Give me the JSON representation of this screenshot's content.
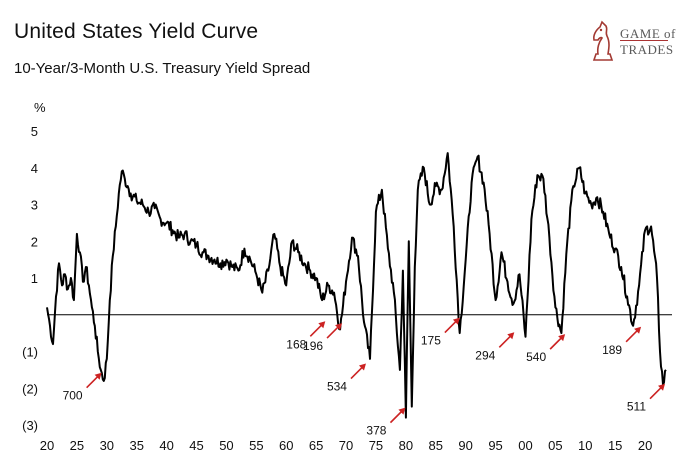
{
  "header": {
    "title": "United States Yield Curve",
    "subtitle": "10-Year/3-Month U.S. Treasury Yield Spread"
  },
  "logo": {
    "line1": "GAME of",
    "line2": "TRADES",
    "icon": "chess-knight-icon",
    "color": "#a33a33"
  },
  "chart_data": {
    "type": "line",
    "title": "United States Yield Curve",
    "subtitle": "10-Year/3-Month U.S. Treasury Yield Spread",
    "ylabel": "%",
    "xlabel": "",
    "ylim": [
      -3,
      5
    ],
    "xlim": [
      1920,
      2024.5
    ],
    "y_ticks": [
      5,
      4,
      3,
      2,
      1,
      -1,
      -2,
      -3
    ],
    "y_tick_labels": [
      "5",
      "4",
      "3",
      "2",
      "1",
      "(1)",
      "(2)",
      "(3)"
    ],
    "x_ticks": [
      1920,
      1925,
      1930,
      1935,
      1940,
      1945,
      1950,
      1955,
      1960,
      1965,
      1970,
      1975,
      1980,
      1985,
      1990,
      1995,
      2000,
      2005,
      2010,
      2015,
      2020
    ],
    "x_tick_labels": [
      "20",
      "25",
      "30",
      "35",
      "40",
      "45",
      "50",
      "55",
      "60",
      "65",
      "70",
      "75",
      "80",
      "85",
      "90",
      "95",
      "00",
      "05",
      "10",
      "15",
      "20"
    ],
    "zero_line": 0,
    "line_color": "#000000",
    "arrow_color": "#cc2222",
    "series": [
      {
        "name": "10Y-3M Spread",
        "x": [
          1920,
          1920.5,
          1921,
          1921.5,
          1922,
          1922.5,
          1923,
          1923.5,
          1924,
          1924.5,
          1925,
          1925.5,
          1926,
          1926.5,
          1927,
          1927.5,
          1928,
          1928.5,
          1929,
          1929.5,
          1930,
          1930.5,
          1931,
          1931.5,
          1932,
          1932.5,
          1933,
          1933.5,
          1934,
          1935,
          1936,
          1937,
          1938,
          1939,
          1940,
          1941,
          1942,
          1943,
          1944,
          1945,
          1946,
          1947,
          1948,
          1949,
          1950,
          1951,
          1952,
          1953,
          1954,
          1955,
          1956,
          1957,
          1958,
          1959,
          1960,
          1961,
          1962,
          1963,
          1964,
          1965,
          1966,
          1967,
          1968,
          1969,
          1970,
          1971,
          1972,
          1973,
          1974,
          1975,
          1976,
          1977,
          1978,
          1979,
          1979.5,
          1980,
          1980.5,
          1981,
          1981.5,
          1982,
          1983,
          1984,
          1985,
          1986,
          1987,
          1988,
          1989,
          1990,
          1991,
          1992,
          1993,
          1994,
          1995,
          1996,
          1997,
          1998,
          1999,
          2000,
          2001,
          2002,
          2003,
          2004,
          2005,
          2006,
          2007,
          2008,
          2009,
          2010,
          2011,
          2012,
          2013,
          2014,
          2015,
          2016,
          2017,
          2018,
          2019,
          2020,
          2021,
          2022,
          2022.5,
          2023,
          2023.5
        ],
        "y": [
          0.2,
          -0.3,
          -0.8,
          0.5,
          1.4,
          0.8,
          1.1,
          0.7,
          1.0,
          0.4,
          2.2,
          1.7,
          0.9,
          1.3,
          0.8,
          0.2,
          -0.3,
          -1.0,
          -1.5,
          -1.8,
          -1.2,
          0.4,
          1.6,
          2.4,
          3.3,
          3.9,
          3.7,
          3.5,
          3.3,
          3.1,
          3.0,
          2.8,
          2.9,
          2.6,
          2.5,
          2.3,
          2.1,
          2.2,
          2.0,
          1.9,
          1.7,
          1.6,
          1.5,
          1.4,
          1.5,
          1.3,
          1.2,
          1.8,
          1.5,
          1.1,
          0.6,
          1.2,
          2.2,
          1.3,
          0.8,
          2.0,
          1.7,
          1.4,
          1.2,
          1.0,
          0.4,
          0.8,
          0.6,
          -0.4,
          0.9,
          2.1,
          1.6,
          -0.2,
          -1.2,
          2.8,
          3.4,
          1.8,
          0.6,
          -1.5,
          1.2,
          -2.8,
          2.0,
          -2.5,
          1.3,
          3.4,
          4.0,
          3.0,
          3.5,
          3.4,
          4.4,
          2.4,
          -0.5,
          1.5,
          3.6,
          4.3,
          3.6,
          2.2,
          0.4,
          1.7,
          0.9,
          0.3,
          1.1,
          -0.6,
          2.6,
          3.8,
          3.7,
          2.1,
          0.2,
          -0.5,
          2.0,
          3.5,
          4.0,
          3.3,
          3.0,
          3.2,
          2.8,
          2.2,
          1.8,
          1.3,
          0.5,
          -0.3,
          0.8,
          2.3,
          2.4,
          1.0,
          -1.0,
          -1.9,
          -1.5
        ]
      }
    ],
    "callouts": [
      {
        "label": "700",
        "x": 1929.3,
        "y": -1.55
      },
      {
        "label": "168",
        "x": 1966.7,
        "y": -0.15
      },
      {
        "label": "196",
        "x": 1969.5,
        "y": -0.2
      },
      {
        "label": "534",
        "x": 1973.5,
        "y": -1.3
      },
      {
        "label": "378",
        "x": 1980.1,
        "y": -2.5
      },
      {
        "label": "175",
        "x": 1989.2,
        "y": -0.05
      },
      {
        "label": "294",
        "x": 1998.3,
        "y": -0.45
      },
      {
        "label": "540",
        "x": 2006.8,
        "y": -0.5
      },
      {
        "label": "189",
        "x": 2019.5,
        "y": -0.3
      },
      {
        "label": "511",
        "x": 2023.5,
        "y": -1.85
      }
    ]
  }
}
